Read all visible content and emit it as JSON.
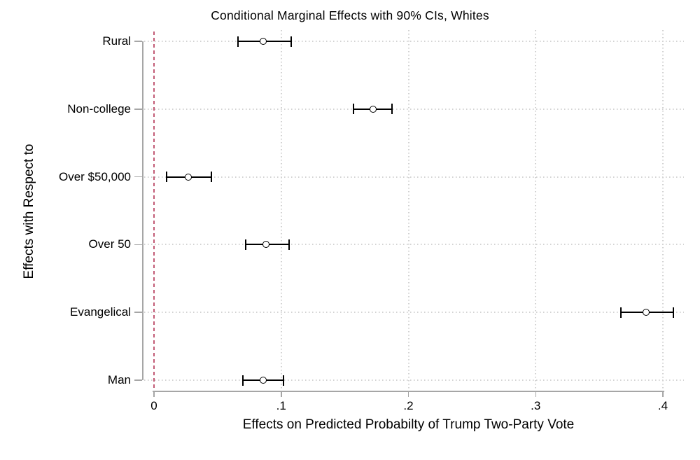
{
  "chart_data": {
    "type": "scatter",
    "subtype": "horizontal-confidence-interval-plot",
    "title": "Conditional Marginal Effects with 90% CIs, Whites",
    "xlabel": "Effects on Predicted Probabilty of Trump Two-Party Vote",
    "ylabel": "Effects with Respect to",
    "categories": [
      "Rural",
      "Non-college",
      "Over $50,000",
      "Over 50",
      "Evangelical",
      "Man"
    ],
    "points": [
      {
        "label": "Rural",
        "estimate": 0.086,
        "ci_low": 0.066,
        "ci_high": 0.108
      },
      {
        "label": "Non-college",
        "estimate": 0.172,
        "ci_low": 0.157,
        "ci_high": 0.187
      },
      {
        "label": "Over $50,000",
        "estimate": 0.027,
        "ci_low": 0.01,
        "ci_high": 0.045
      },
      {
        "label": "Over 50",
        "estimate": 0.088,
        "ci_low": 0.072,
        "ci_high": 0.106
      },
      {
        "label": "Evangelical",
        "estimate": 0.387,
        "ci_low": 0.367,
        "ci_high": 0.408
      },
      {
        "label": "Man",
        "estimate": 0.086,
        "ci_low": 0.07,
        "ci_high": 0.102
      }
    ],
    "x_ticks": [
      {
        "value": 0.0,
        "label": "0"
      },
      {
        "value": 0.1,
        "label": ".1"
      },
      {
        "value": 0.2,
        "label": ".2"
      },
      {
        "value": 0.3,
        "label": ".3"
      },
      {
        "value": 0.4,
        "label": ".4"
      }
    ],
    "xlim": [
      0,
      0.4
    ],
    "reference_line_x": 0,
    "grid": true,
    "legend_position": "none",
    "confidence_level": "90%",
    "colors": {
      "background": "#ffffff",
      "axis": "#a6a6a6",
      "gridline": "#d2d2d2",
      "reference_line": "#c25b75",
      "estimate_marker": "#000000",
      "ci_bar": "#000000",
      "text": "#000000"
    }
  }
}
